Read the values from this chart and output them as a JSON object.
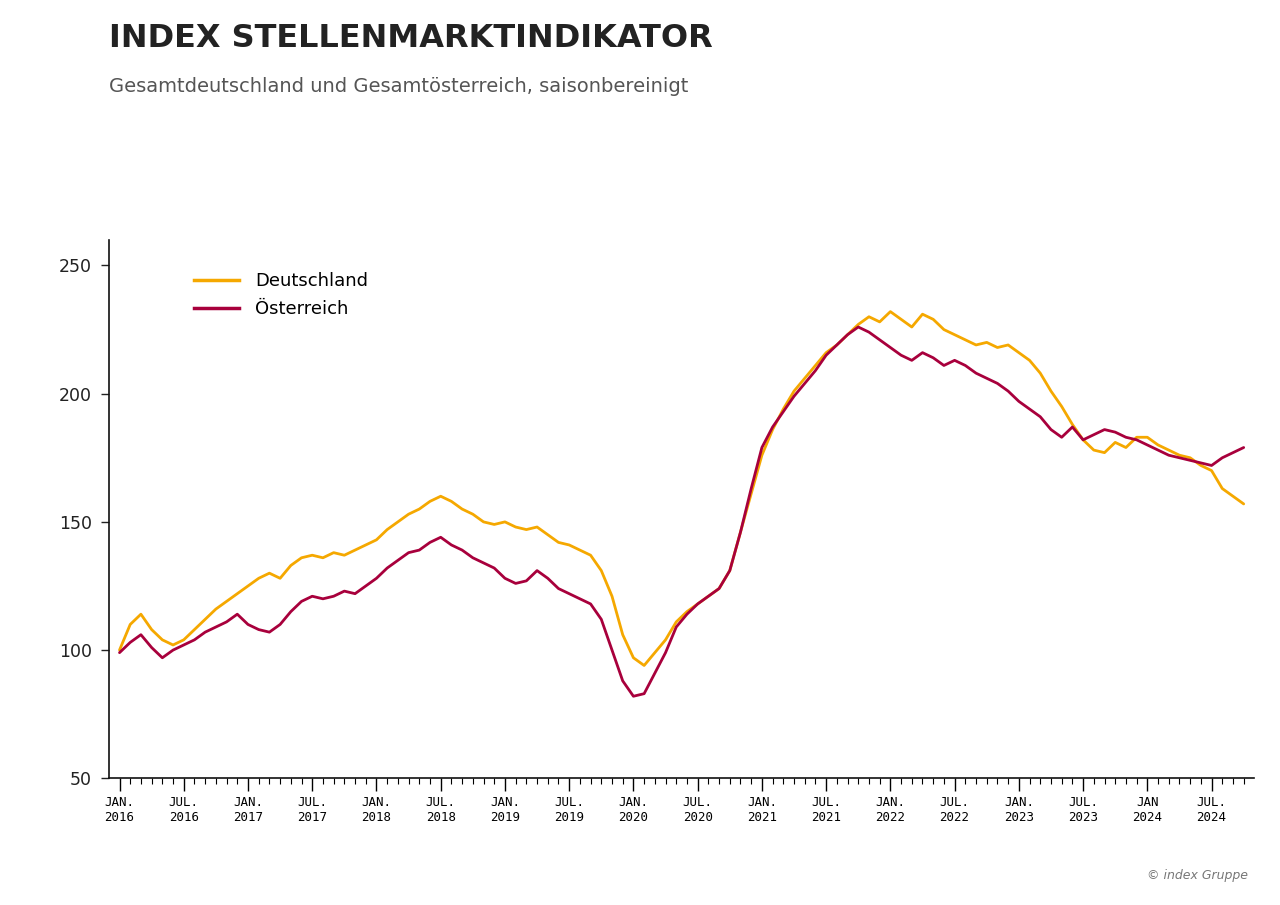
{
  "title": "INDEX STELLENMARKTINDIKATOR",
  "subtitle": "Gesamtdeutschland und Gesamtösterreich, saisonbereinigt",
  "copyright": "© index Gruppe",
  "ylim": [
    50,
    260
  ],
  "yticks": [
    50,
    100,
    150,
    200,
    250
  ],
  "color_deutschland": "#F5A800",
  "color_oesterreich": "#A8003C",
  "legend_labels": [
    "Deutschland",
    "Österreich"
  ],
  "x_tick_labels": [
    "JAN.\n2016",
    "JUL.\n2016",
    "JAN.\n2017",
    "JUL.\n2017",
    "JAN.\n2018",
    "JUL.\n2018",
    "JAN.\n2019",
    "JUL.\n2019",
    "JAN.\n2020",
    "JUL.\n2020",
    "JAN.\n2021",
    "JUL.\n2021",
    "JAN.\n2022",
    "JUL.\n2022",
    "JAN.\n2023",
    "JUL.\n2023",
    "JAN\n2024",
    "JUL.\n2024"
  ],
  "deutschland": [
    100,
    110,
    114,
    108,
    104,
    102,
    104,
    108,
    112,
    116,
    119,
    122,
    125,
    128,
    130,
    128,
    133,
    136,
    137,
    136,
    138,
    137,
    139,
    141,
    143,
    147,
    150,
    153,
    155,
    158,
    160,
    158,
    155,
    153,
    150,
    149,
    150,
    148,
    147,
    148,
    145,
    142,
    141,
    139,
    137,
    131,
    121,
    106,
    97,
    94,
    99,
    104,
    111,
    115,
    118,
    121,
    124,
    131,
    146,
    161,
    176,
    186,
    194,
    201,
    206,
    211,
    216,
    219,
    223,
    227,
    230,
    228,
    232,
    229,
    226,
    231,
    229,
    225,
    223,
    221,
    219,
    220,
    218,
    219,
    216,
    213,
    208,
    201,
    195,
    188,
    182,
    178,
    177,
    181,
    179,
    183,
    183,
    180,
    178,
    176,
    175,
    172,
    170,
    163,
    160,
    157
  ],
  "oesterreich": [
    99,
    103,
    106,
    101,
    97,
    100,
    102,
    104,
    107,
    109,
    111,
    114,
    110,
    108,
    107,
    110,
    115,
    119,
    121,
    120,
    121,
    123,
    122,
    125,
    128,
    132,
    135,
    138,
    139,
    142,
    144,
    141,
    139,
    136,
    134,
    132,
    128,
    126,
    127,
    131,
    128,
    124,
    122,
    120,
    118,
    112,
    100,
    88,
    82,
    83,
    91,
    99,
    109,
    114,
    118,
    121,
    124,
    131,
    146,
    163,
    179,
    187,
    193,
    199,
    204,
    209,
    215,
    219,
    223,
    226,
    224,
    221,
    218,
    215,
    213,
    216,
    214,
    211,
    213,
    211,
    208,
    206,
    204,
    201,
    197,
    194,
    191,
    186,
    183,
    187,
    182,
    184,
    186,
    185,
    183,
    182,
    180,
    178,
    176,
    175,
    174,
    173,
    172,
    175,
    177,
    179
  ]
}
